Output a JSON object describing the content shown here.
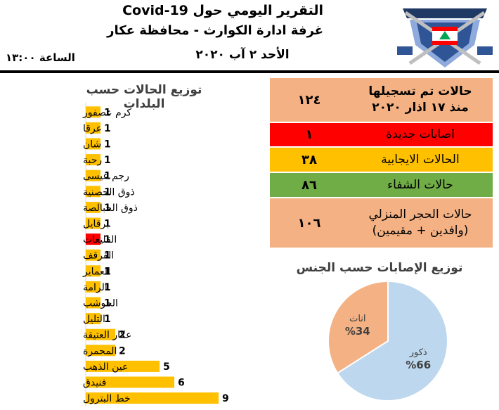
{
  "header": {
    "title_line1": "التقرير اليومي حول Covid-19",
    "title_line2": "غرفة ادارة الكوارث - محافظة عكار",
    "date": "الأحد ٢ آب ٢٠٢٠",
    "time": "الساعة ١٣:٠٠"
  },
  "stats": {
    "total_label_line1": "حالات تم تسجيلها",
    "total_label_line2": "منذ ١٧ اذار ٢٠٢٠",
    "total_value": "١٢٤",
    "new_label": "اصابات جديدة",
    "new_value": "١",
    "positive_label": "الحالات الايجابية",
    "positive_value": "٣٨",
    "recovered_label": "حالات الشفاء",
    "recovered_value": "٨٦",
    "home_label_line1": "حالات الحجر المنزلي",
    "home_label_line2": "(وافدين + مقيمين)",
    "home_value": "١٠٦",
    "colors": {
      "total": "#f4b183",
      "new": "#ff0000",
      "positive": "#ffc000",
      "recovered": "#70ad47",
      "home": "#f4b183"
    }
  },
  "chart_data": [
    {
      "type": "bar",
      "orientation": "horizontal",
      "title": "توزيع الحالات حسب البلدات",
      "categories": [
        "كرم عصفور",
        "عرقا",
        "شان",
        "رحبة",
        "رجم عيسى",
        "ذوق الحصنية",
        "ذوق الحبالصة",
        "برقايل",
        "القليعات",
        "القرقف",
        "العماير",
        "الرامة",
        "الحوشب",
        "التليل",
        "عكار العتيقة",
        "المحمرة",
        "عين الذهب",
        "فنيدق",
        "خط البترول"
      ],
      "values": [
        1,
        1,
        1,
        1,
        1,
        1,
        1,
        1,
        1,
        1,
        1,
        1,
        1,
        1,
        2,
        2,
        5,
        6,
        9
      ],
      "colors": [
        "#ffc000",
        "#ffc000",
        "#ffc000",
        "#ffc000",
        "#ffc000",
        "#ffc000",
        "#ffc000",
        "#ffc000",
        "#ff0000",
        "#ffc000",
        "#ffc000",
        "#ffc000",
        "#ffc000",
        "#ffc000",
        "#ffc000",
        "#ffc000",
        "#ffc000",
        "#ffc000",
        "#ffc000"
      ],
      "xlim": [
        0,
        9
      ],
      "grid": false,
      "legend": "none"
    },
    {
      "type": "pie",
      "title": "توزيع الإصابات حسب الجنس",
      "categories": [
        "اناث",
        "ذكور"
      ],
      "values": [
        34,
        66
      ],
      "labels": [
        "%34",
        "%66"
      ],
      "colors": [
        "#f4b183",
        "#bdd7ee"
      ]
    }
  ]
}
